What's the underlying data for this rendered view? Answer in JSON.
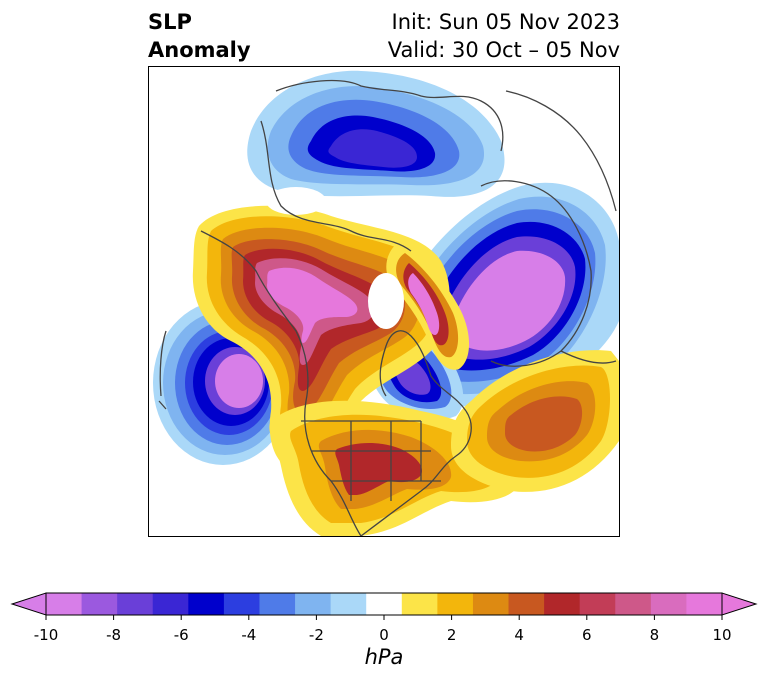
{
  "header": {
    "title_line1": "SLP",
    "title_line2": "Anomaly",
    "init_text": "Init: Sun 05 Nov 2023",
    "valid_text": "Valid: 30 Oct – 05 Nov"
  },
  "colorbar": {
    "unit": "hPa",
    "min": -10,
    "max": 10,
    "step": 1.25,
    "tick_values": [
      -10,
      -8,
      -6,
      -4,
      -2,
      0,
      2,
      4,
      6,
      8,
      10
    ],
    "tick_labels": [
      "-10",
      "-8",
      "-6",
      "-4",
      "-2",
      "0",
      "2",
      "4",
      "6",
      "8",
      "10"
    ],
    "colors": [
      "#d77ee8",
      "#9b59df",
      "#6a3fd8",
      "#3a26d4",
      "#0000cc",
      "#2c3ee0",
      "#4f7be8",
      "#7fb4f0",
      "#aad8f8",
      "#ffffff",
      "#fce448",
      "#f3b60c",
      "#dd8a12",
      "#c85820",
      "#b1272a",
      "#c23d57",
      "#ce5889",
      "#d96cbe",
      "#e678dc"
    ]
  },
  "map": {
    "palette": {
      "neg_light": "#aad8f8",
      "neg_2": "#7fb4f0",
      "neg_3": "#4f7be8",
      "neg_4": "#2c3ee0",
      "neg_5": "#0000cc",
      "neg_6": "#3a26d4",
      "neg_7": "#6a3fd8",
      "neg_8": "#9b59df",
      "neg_9": "#d77ee8",
      "pos_1": "#fce448",
      "pos_2": "#f3b60c",
      "pos_3": "#dd8a12",
      "pos_4": "#c85820",
      "pos_5": "#b1272a",
      "pos_6": "#c23d57",
      "pos_7": "#ce5889",
      "pos_8": "#d96cbe",
      "pos_9": "#e678dc",
      "coast": "#444444"
    }
  }
}
